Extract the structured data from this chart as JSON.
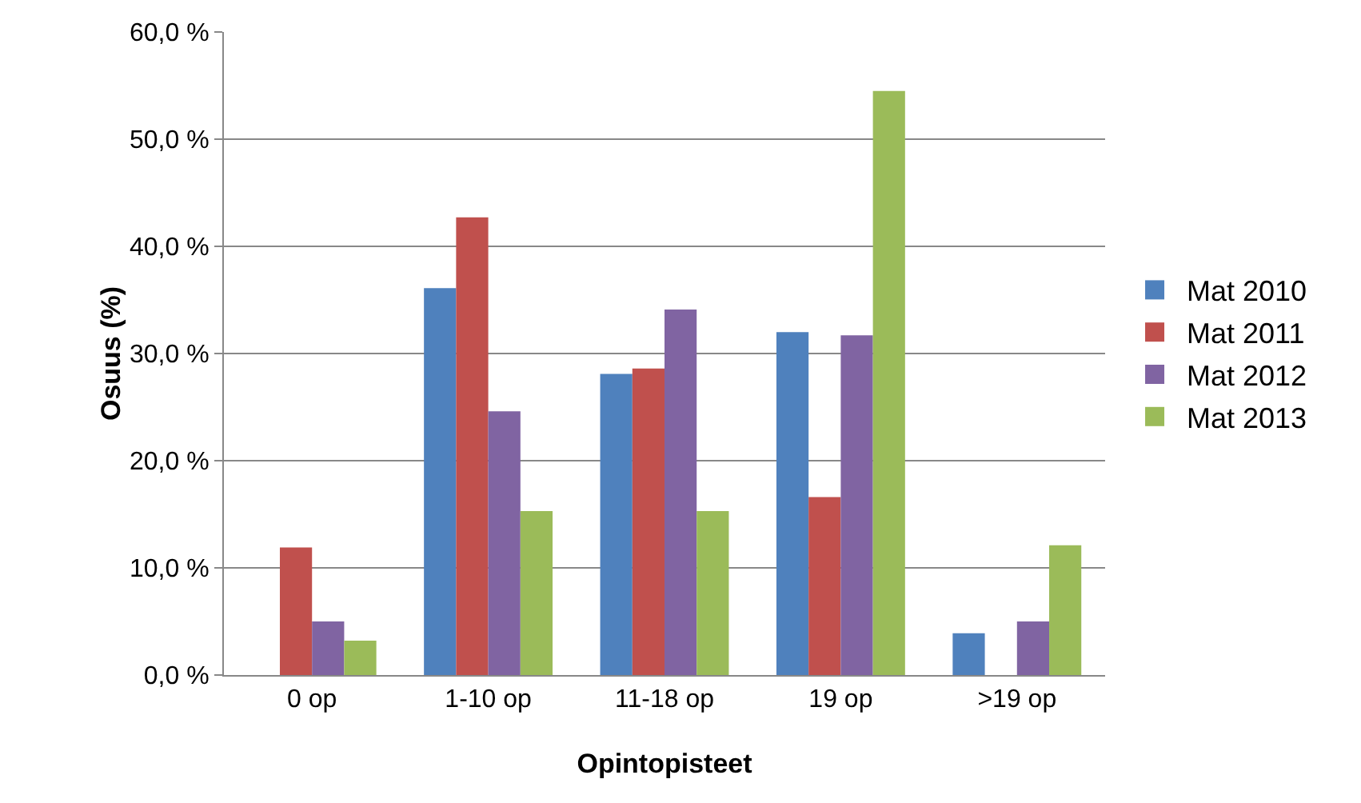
{
  "chart_data": {
    "type": "bar",
    "xlabel": "Opintopisteet",
    "ylabel": "Osuus (%)",
    "categories": [
      "0 op",
      "1-10 op",
      "11-18 op",
      "19 op",
      ">19 op"
    ],
    "series": [
      {
        "name": "Mat 2010",
        "color": "#4f81bd",
        "values": [
          0,
          36.1,
          28.1,
          32.0,
          3.9
        ]
      },
      {
        "name": "Mat 2011",
        "color": "#c0504d",
        "values": [
          11.9,
          42.7,
          28.6,
          16.6,
          0
        ]
      },
      {
        "name": "Mat 2012",
        "color": "#8064a2",
        "values": [
          5.0,
          24.6,
          34.1,
          31.7,
          5.0
        ]
      },
      {
        "name": "Mat 2013",
        "color": "#9bbb59",
        "values": [
          3.2,
          15.3,
          15.3,
          54.5,
          12.1
        ]
      }
    ],
    "ylim": [
      0,
      60
    ],
    "yticks": [
      {
        "value": 0,
        "label": "0,0 %"
      },
      {
        "value": 10,
        "label": "10,0 %"
      },
      {
        "value": 20,
        "label": "20,0 %"
      },
      {
        "value": 30,
        "label": "30,0 %"
      },
      {
        "value": 40,
        "label": "40,0 %"
      },
      {
        "value": 50,
        "label": "50,0 %"
      },
      {
        "value": 60,
        "label": "60,0 %"
      }
    ],
    "grid": "y",
    "legend": "right"
  }
}
